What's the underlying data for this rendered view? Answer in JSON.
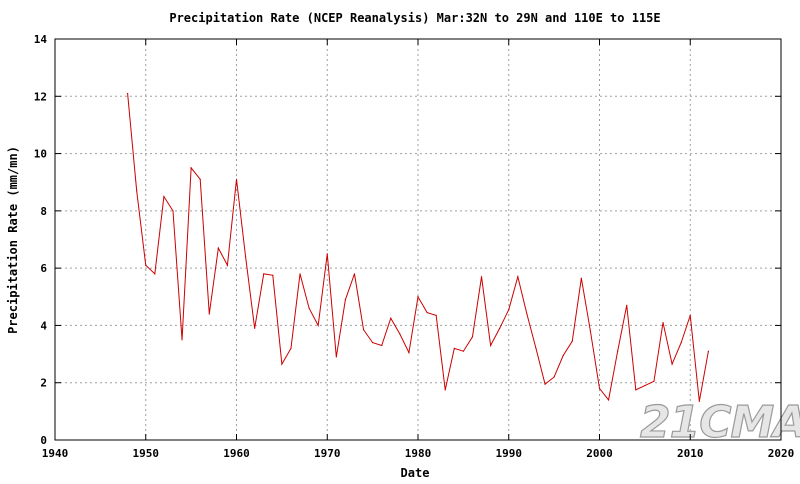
{
  "chart_data": {
    "type": "line",
    "title": "Precipitation Rate (NCEP Reanalysis) Mar:32N to 29N and 110E to 115E",
    "xlabel": "Date",
    "ylabel": "Precipitation Rate (mm/mn)",
    "xlim": [
      1940,
      2020
    ],
    "ylim": [
      0,
      14
    ],
    "xticks": [
      1940,
      1950,
      1960,
      1970,
      1980,
      1990,
      2000,
      2010,
      2020
    ],
    "yticks": [
      0,
      2,
      4,
      6,
      8,
      10,
      12,
      14
    ],
    "grid": true,
    "series": [
      {
        "name": "Precipitation Rate",
        "color": "#cc0000",
        "x": [
          1948,
          1949,
          1950,
          1951,
          1952,
          1953,
          1954,
          1955,
          1956,
          1957,
          1958,
          1959,
          1960,
          1961,
          1962,
          1963,
          1964,
          1965,
          1966,
          1967,
          1968,
          1969,
          1970,
          1971,
          1972,
          1973,
          1974,
          1975,
          1976,
          1977,
          1978,
          1979,
          1980,
          1981,
          1982,
          1983,
          1984,
          1985,
          1986,
          1987,
          1988,
          1989,
          1990,
          1991,
          1992,
          1993,
          1994,
          1995,
          1996,
          1997,
          1998,
          1999,
          2000,
          2001,
          2002,
          2003,
          2004,
          2005,
          2006,
          2007,
          2008,
          2009,
          2010,
          2011,
          2012
        ],
        "y": [
          12.1,
          8.7,
          6.1,
          5.8,
          8.5,
          8.0,
          3.5,
          9.5,
          9.1,
          4.4,
          6.7,
          6.1,
          9.1,
          6.4,
          3.9,
          5.8,
          5.75,
          2.65,
          3.2,
          5.8,
          4.6,
          4.0,
          6.5,
          2.9,
          4.9,
          5.8,
          3.85,
          3.4,
          3.3,
          4.25,
          3.7,
          3.05,
          5.0,
          4.45,
          4.35,
          1.75,
          3.2,
          3.1,
          3.6,
          5.7,
          3.3,
          3.9,
          4.55,
          5.7,
          4.4,
          3.2,
          1.95,
          2.2,
          2.95,
          3.45,
          5.65,
          3.8,
          1.8,
          1.4,
          3.1,
          4.7,
          1.75,
          1.9,
          2.05,
          4.1,
          2.65,
          3.4,
          4.35,
          1.35,
          3.1
        ]
      }
    ]
  },
  "watermark": "21CMA"
}
